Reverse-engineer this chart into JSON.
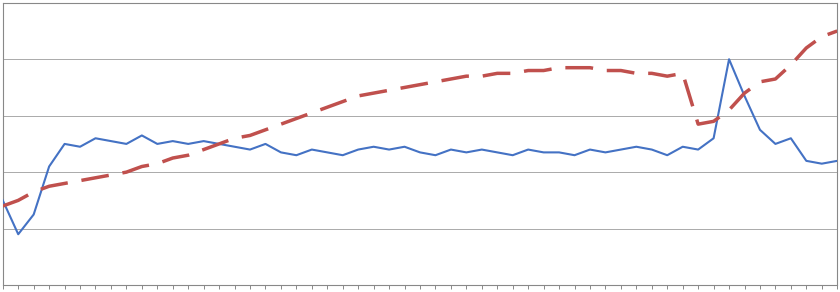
{
  "blue_y": [
    0.3,
    0.18,
    0.25,
    0.42,
    0.5,
    0.49,
    0.52,
    0.51,
    0.5,
    0.53,
    0.5,
    0.51,
    0.5,
    0.51,
    0.5,
    0.49,
    0.48,
    0.5,
    0.47,
    0.46,
    0.48,
    0.47,
    0.46,
    0.48,
    0.49,
    0.48,
    0.49,
    0.47,
    0.46,
    0.48,
    0.47,
    0.48,
    0.47,
    0.46,
    0.48,
    0.47,
    0.47,
    0.46,
    0.48,
    0.47,
    0.48,
    0.49,
    0.48,
    0.46,
    0.49,
    0.48,
    0.52,
    0.8,
    0.67,
    0.55,
    0.5,
    0.52,
    0.44,
    0.43,
    0.44
  ],
  "red_y": [
    0.28,
    0.3,
    0.33,
    0.35,
    0.36,
    0.37,
    0.38,
    0.39,
    0.4,
    0.42,
    0.43,
    0.45,
    0.46,
    0.48,
    0.5,
    0.52,
    0.53,
    0.55,
    0.57,
    0.59,
    0.61,
    0.63,
    0.65,
    0.67,
    0.68,
    0.69,
    0.7,
    0.71,
    0.72,
    0.73,
    0.74,
    0.74,
    0.75,
    0.75,
    0.76,
    0.76,
    0.77,
    0.77,
    0.77,
    0.76,
    0.76,
    0.75,
    0.75,
    0.74,
    0.75,
    0.57,
    0.58,
    0.62,
    0.68,
    0.72,
    0.73,
    0.78,
    0.84,
    0.88,
    0.9
  ],
  "n_points": 55,
  "blue_color": "#4472C4",
  "red_color": "#C0504D",
  "background_color": "none",
  "grid_color": "#AAAAAA",
  "ylim": [
    0.0,
    1.0
  ],
  "xlim": [
    0,
    54
  ],
  "yticks": [
    0.0,
    0.2,
    0.4,
    0.6,
    0.8,
    1.0
  ]
}
